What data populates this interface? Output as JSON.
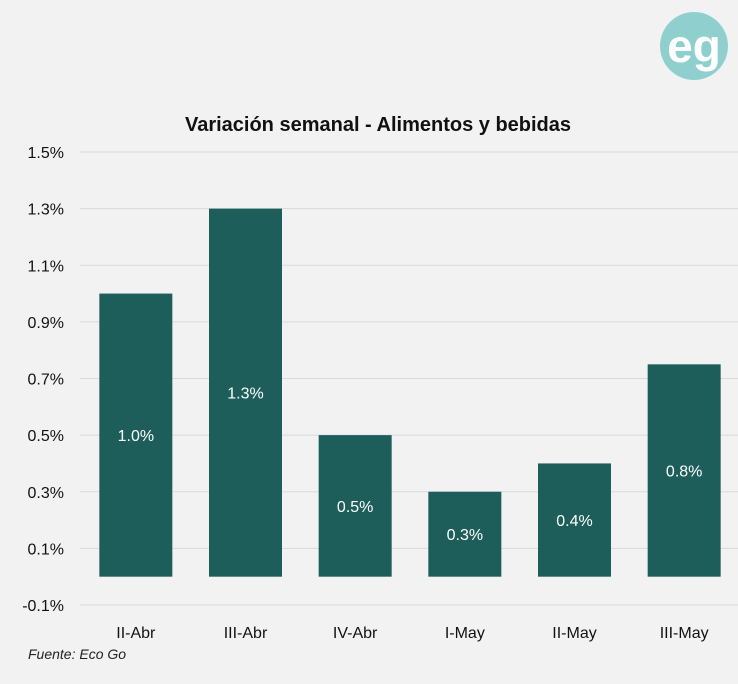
{
  "logo": {
    "text": "eg",
    "color": "#8fd0cf"
  },
  "source": "Fuente: Eco Go",
  "chart_data": {
    "type": "bar",
    "title": "Variación semanal - Alimentos y bebidas",
    "xlabel": "",
    "ylabel": "",
    "categories": [
      "II-Abr",
      "III-Abr",
      "IV-Abr",
      "I-May",
      "II-May",
      "III-May"
    ],
    "values": [
      1.0,
      1.3,
      0.5,
      0.3,
      0.4,
      0.75
    ],
    "data_labels": [
      "1.0%",
      "1.3%",
      "0.5%",
      "0.3%",
      "0.4%",
      "0.8%"
    ],
    "ylim": [
      -0.1,
      1.5
    ],
    "yticks": [
      -0.1,
      0.1,
      0.3,
      0.5,
      0.7,
      0.9,
      1.1,
      1.3,
      1.5
    ],
    "ytick_labels": [
      "-0.1%",
      "0.1%",
      "0.3%",
      "0.5%",
      "0.7%",
      "0.9%",
      "1.1%",
      "1.3%",
      "1.5%"
    ],
    "grid": true,
    "legend": "none",
    "bar_color": "#1e5e5a"
  }
}
